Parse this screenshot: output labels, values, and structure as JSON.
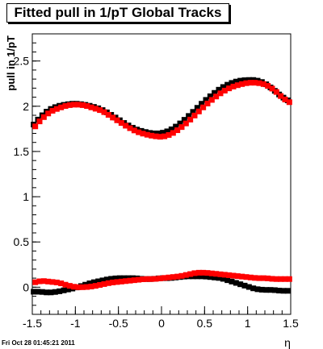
{
  "chart_data": {
    "type": "scatter",
    "title": "Fitted pull in 1/pT  Global Tracks",
    "xlabel": "η",
    "ylabel": "pull in 1/pT",
    "xlim": [
      -1.5,
      1.5
    ],
    "ylim": [
      -0.3,
      2.8
    ],
    "xticks": [
      "-1.5",
      "-1",
      "-0.5",
      "0",
      "0.5",
      "1",
      "1.5"
    ],
    "yticks": [
      "0",
      "0.5",
      "1",
      "1.5",
      "2",
      "2.5"
    ],
    "grid": false,
    "legend": "none",
    "series": [
      {
        "color": "#000000",
        "x": [
          -1.5,
          -1.4,
          -1.3,
          -1.2,
          -1.1,
          -1.0,
          -0.9,
          -0.8,
          -0.7,
          -0.6,
          -0.5,
          -0.4,
          -0.3,
          -0.2,
          -0.1,
          0.0,
          0.1,
          0.2,
          0.3,
          0.4,
          0.5,
          0.6,
          0.7,
          0.8,
          0.9,
          1.0,
          1.1,
          1.2,
          1.3,
          1.4,
          1.5
        ],
        "y": [
          1.77,
          1.88,
          1.96,
          2.0,
          2.02,
          2.03,
          2.02,
          2.0,
          1.97,
          1.92,
          1.86,
          1.8,
          1.75,
          1.72,
          1.7,
          1.7,
          1.73,
          1.79,
          1.87,
          1.96,
          2.05,
          2.13,
          2.2,
          2.25,
          2.28,
          2.29,
          2.29,
          2.26,
          2.19,
          2.11,
          2.05
        ]
      },
      {
        "color": "#ff0000",
        "x": [
          -1.5,
          -1.4,
          -1.3,
          -1.2,
          -1.1,
          -1.0,
          -0.9,
          -0.8,
          -0.7,
          -0.6,
          -0.5,
          -0.4,
          -0.3,
          -0.2,
          -0.1,
          0.0,
          0.1,
          0.2,
          0.3,
          0.4,
          0.5,
          0.6,
          0.7,
          0.8,
          0.9,
          1.0,
          1.1,
          1.2,
          1.3,
          1.4,
          1.5
        ],
        "y": [
          1.75,
          1.86,
          1.94,
          1.98,
          2.01,
          2.02,
          2.01,
          1.98,
          1.95,
          1.89,
          1.83,
          1.77,
          1.72,
          1.69,
          1.67,
          1.66,
          1.69,
          1.75,
          1.83,
          1.92,
          2.01,
          2.09,
          2.16,
          2.21,
          2.24,
          2.26,
          2.26,
          2.24,
          2.18,
          2.09,
          2.03
        ]
      },
      {
        "color": "#000000",
        "x": [
          -1.5,
          -1.4,
          -1.3,
          -1.2,
          -1.1,
          -1.0,
          -0.9,
          -0.8,
          -0.7,
          -0.6,
          -0.5,
          -0.4,
          -0.3,
          -0.2,
          -0.1,
          0.0,
          0.1,
          0.2,
          0.3,
          0.4,
          0.5,
          0.6,
          0.7,
          0.8,
          0.9,
          1.0,
          1.1,
          1.2,
          1.3,
          1.4,
          1.5
        ],
        "y": [
          -0.05,
          -0.05,
          -0.06,
          -0.05,
          -0.03,
          -0.01,
          0.02,
          0.05,
          0.07,
          0.09,
          0.1,
          0.1,
          0.1,
          0.09,
          0.09,
          0.1,
          0.1,
          0.11,
          0.12,
          0.12,
          0.12,
          0.11,
          0.1,
          0.07,
          0.04,
          0.01,
          -0.02,
          -0.03,
          -0.03,
          -0.04,
          -0.04
        ]
      },
      {
        "color": "#ff0000",
        "x": [
          -1.5,
          -1.4,
          -1.3,
          -1.2,
          -1.1,
          -1.0,
          -0.9,
          -0.8,
          -0.7,
          -0.6,
          -0.5,
          -0.4,
          -0.3,
          -0.2,
          -0.1,
          0.0,
          0.1,
          0.2,
          0.3,
          0.4,
          0.5,
          0.6,
          0.7,
          0.8,
          0.9,
          1.0,
          1.1,
          1.2,
          1.3,
          1.4,
          1.5
        ],
        "y": [
          0.05,
          0.07,
          0.06,
          0.05,
          0.02,
          0.0,
          0.0,
          0.01,
          0.03,
          0.05,
          0.06,
          0.07,
          0.08,
          0.09,
          0.09,
          0.1,
          0.11,
          0.12,
          0.14,
          0.16,
          0.16,
          0.15,
          0.14,
          0.13,
          0.12,
          0.11,
          0.1,
          0.1,
          0.09,
          0.09,
          0.09
        ]
      }
    ]
  },
  "footer": {
    "timestamp": "Fri Oct 28 01:45:21 2011"
  }
}
